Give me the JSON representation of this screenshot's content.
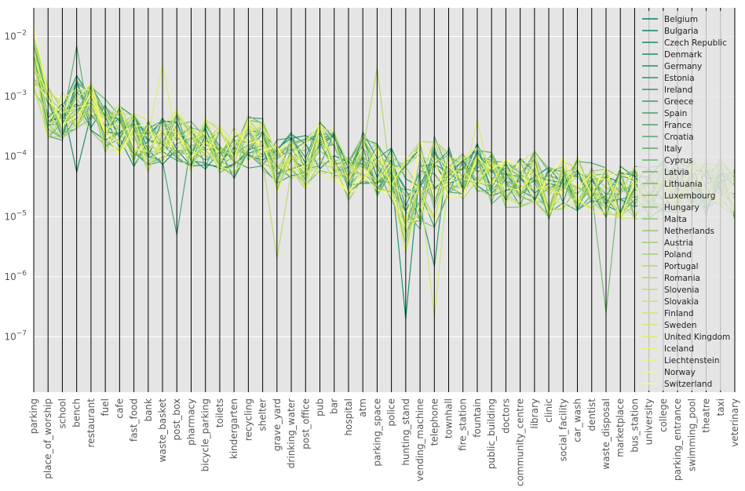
{
  "chart_data": {
    "type": "line",
    "subtype": "parallel-coordinates",
    "title": "",
    "xlabel": "",
    "ylabel": "",
    "y_scale": "log",
    "ylim": [
      1.2e-08,
      0.03
    ],
    "grid": true,
    "legend_placement": "top-right",
    "style": {
      "background": "#e5e5e5",
      "grid_color": "#ffffff",
      "axis_line_color": "#000000",
      "colormap": "summer",
      "colormap_start": "#007f66",
      "colormap_end": "#ffff66"
    },
    "y_ticks": [
      {
        "value": 0.01,
        "base": "10",
        "exp": "−2"
      },
      {
        "value": 0.001,
        "base": "10",
        "exp": "−3"
      },
      {
        "value": 0.0001,
        "base": "10",
        "exp": "−4"
      },
      {
        "value": 1e-05,
        "base": "10",
        "exp": "−5"
      },
      {
        "value": 1e-06,
        "base": "10",
        "exp": "−6"
      },
      {
        "value": 1e-07,
        "base": "10",
        "exp": "−7"
      }
    ],
    "categories": [
      "parking",
      "place_of_worship",
      "school",
      "bench",
      "restaurant",
      "fuel",
      "cafe",
      "fast_food",
      "bank",
      "waste_basket",
      "post_box",
      "pharmacy",
      "bicycle_parking",
      "toilets",
      "kindergarten",
      "recycling",
      "shelter",
      "grave_yard",
      "drinking_water",
      "post_office",
      "pub",
      "bar",
      "hospital",
      "atm",
      "parking_space",
      "police",
      "hunting_stand",
      "vending_machine",
      "telephone",
      "townhall",
      "fire_station",
      "fountain",
      "public_building",
      "doctors",
      "community_centre",
      "library",
      "clinic",
      "social_facility",
      "car_wash",
      "dentist",
      "waste_disposal",
      "marketplace",
      "bus_station",
      "university",
      "college",
      "parking_entrance",
      "swimming_pool",
      "theatre",
      "taxi",
      "veterinary"
    ],
    "category_medians": [
      0.0035,
      0.00055,
      0.0005,
      0.0008,
      0.00065,
      0.00032,
      0.00028,
      0.00019,
      0.00015,
      0.0002,
      0.00022,
      0.00015,
      0.00016,
      0.00015,
      0.00012,
      0.00018,
      0.00016,
      7e-05,
      0.00011,
      8e-05,
      0.00014,
      0.00011,
      5e-05,
      0.0001,
      6e-05,
      5e-05,
      1.5e-05,
      3.5e-05,
      4e-05,
      5.5e-05,
      4.5e-05,
      6.5e-05,
      4.5e-05,
      4e-05,
      4e-05,
      4.5e-05,
      2.5e-05,
      3.5e-05,
      3.5e-05,
      3e-05,
      2.5e-05,
      2.5e-05,
      2.5e-05,
      2.5e-05,
      3e-05,
      3e-05,
      3.5e-05,
      3e-05,
      3.5e-05,
      2.5e-05
    ],
    "series_names": [
      "Belgium",
      "Bulgaria",
      "Czech Republic",
      "Denmark",
      "Germany",
      "Estonia",
      "Ireland",
      "Greece",
      "Spain",
      "France",
      "Croatia",
      "Italy",
      "Cyprus",
      "Latvia",
      "Lithuania",
      "Luxembourg",
      "Hungary",
      "Malta",
      "Netherlands",
      "Austria",
      "Poland",
      "Portugal",
      "Romania",
      "Slovenia",
      "Slovakia",
      "Finland",
      "Sweden",
      "United Kingdom",
      "Iceland",
      "Liechtenstein",
      "Norway",
      "Switzerland"
    ],
    "series_specials": [
      {
        "name": "Bulgaria",
        "category": "bench",
        "value": 5.5e-05
      },
      {
        "name": "Croatia",
        "category": "bench",
        "value": 0.007
      },
      {
        "name": "Greece",
        "category": "post_box",
        "value": 5e-06
      },
      {
        "name": "Czech Republic",
        "category": "hunting_stand",
        "value": 2e-07
      },
      {
        "name": "Denmark",
        "category": "telephone",
        "value": 1.5e-06
      },
      {
        "name": "Romania",
        "category": "grave_yard",
        "value": 2e-06
      },
      {
        "name": "Latvia",
        "category": "waste_disposal",
        "value": 2.5e-07
      },
      {
        "name": "Finland",
        "category": "telephone",
        "value": 2e-07
      },
      {
        "name": "Switzerland",
        "category": "parking",
        "value": 0.014
      },
      {
        "name": "United Kingdom",
        "category": "waste_basket",
        "value": 0.0035
      },
      {
        "name": "Portugal",
        "category": "parking_space",
        "value": 0.003
      },
      {
        "name": "Sweden",
        "category": "fountain",
        "value": 0.0004
      }
    ]
  }
}
